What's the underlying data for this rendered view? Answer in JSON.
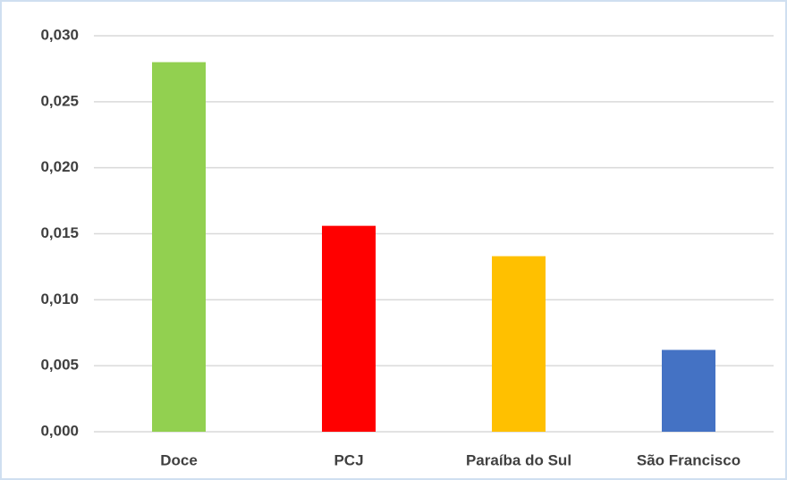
{
  "chart_data": {
    "type": "bar",
    "categories": [
      "Doce",
      "PCJ",
      "Paraíba do Sul",
      "São Francisco"
    ],
    "values": [
      0.028,
      0.0156,
      0.0133,
      0.0062
    ],
    "colors": [
      "#92d050",
      "#ff0000",
      "#ffc000",
      "#4472c4"
    ],
    "ylim": [
      0,
      0.03
    ],
    "yticks": [
      {
        "value": 0,
        "label": "0,000"
      },
      {
        "value": 0.005,
        "label": "0,005"
      },
      {
        "value": 0.01,
        "label": "0,010"
      },
      {
        "value": 0.015,
        "label": "0,015"
      },
      {
        "value": 0.02,
        "label": "0,020"
      },
      {
        "value": 0.025,
        "label": "0,025"
      },
      {
        "value": 0.03,
        "label": "0,030"
      }
    ],
    "grid": true
  }
}
